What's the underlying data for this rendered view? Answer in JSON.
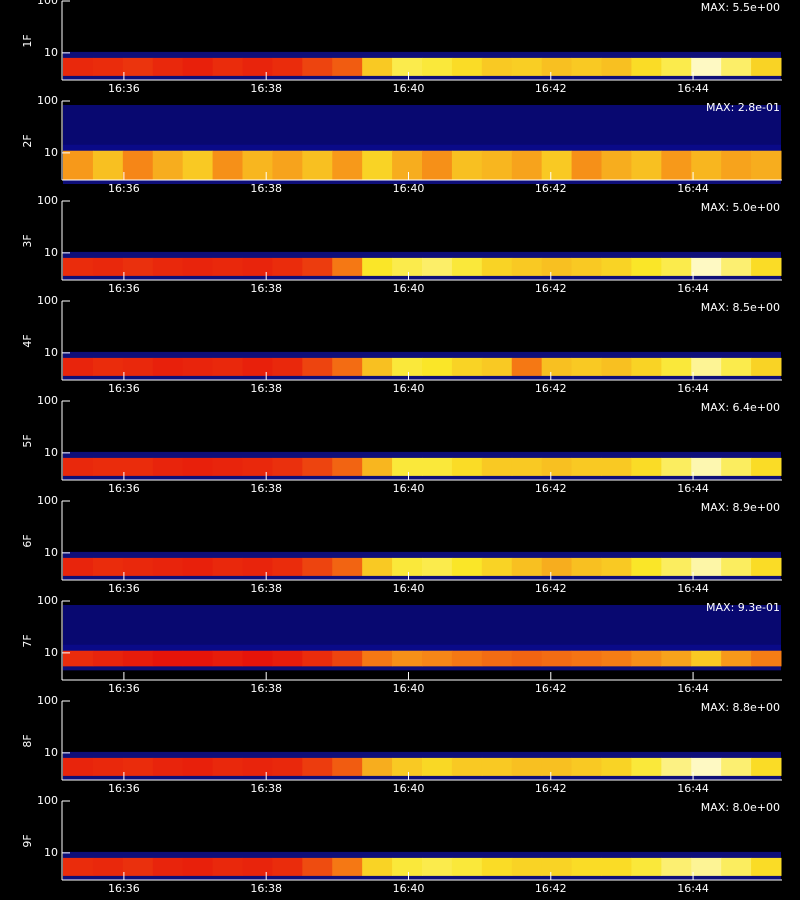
{
  "chart_data": [
    {
      "type": "heatmap",
      "ylabel": "1F",
      "annotation": "MAX: 5.5e+00",
      "ylog": true,
      "ylim": [
        3,
        100
      ],
      "yticks": [
        10,
        100
      ],
      "xlim": [
        35.13,
        45.25
      ],
      "xticks": [
        {
          "value": 36,
          "label": "16:36"
        },
        {
          "value": 38,
          "label": "16:38"
        },
        {
          "value": 40,
          "label": "16:40"
        },
        {
          "value": 42,
          "label": "16:42"
        },
        {
          "value": 44,
          "label": "16:44"
        }
      ],
      "band": [
        3.6,
        8
      ],
      "values": [
        0.35,
        0.36,
        0.38,
        0.35,
        0.33,
        0.36,
        0.34,
        0.36,
        0.42,
        0.48,
        0.72,
        0.82,
        0.8,
        0.76,
        0.72,
        0.73,
        0.7,
        0.72,
        0.7,
        0.76,
        0.82,
        0.95,
        0.85,
        0.74
      ]
    },
    {
      "type": "heatmap",
      "ylabel": "2F",
      "annotation": "MAX: 2.8e-01",
      "ylog": true,
      "ylim": [
        3,
        100
      ],
      "yticks": [
        10,
        100
      ],
      "xlim": [
        35.13,
        45.25
      ],
      "xticks": [
        {
          "value": 36,
          "label": "16:36"
        },
        {
          "value": 38,
          "label": "16:38"
        },
        {
          "value": 40,
          "label": "16:40"
        },
        {
          "value": 42,
          "label": "16:42"
        },
        {
          "value": 44,
          "label": "16:44"
        }
      ],
      "band": [
        3,
        11
      ],
      "values": [
        0.62,
        0.7,
        0.58,
        0.66,
        0.72,
        0.6,
        0.68,
        0.64,
        0.7,
        0.62,
        0.74,
        0.66,
        0.6,
        0.7,
        0.68,
        0.64,
        0.72,
        0.6,
        0.66,
        0.7,
        0.62,
        0.68,
        0.64,
        0.66
      ]
    },
    {
      "type": "heatmap",
      "ylabel": "3F",
      "annotation": "MAX: 5.0e+00",
      "ylog": true,
      "ylim": [
        3,
        100
      ],
      "yticks": [
        10,
        100
      ],
      "xlim": [
        35.13,
        45.25
      ],
      "xticks": [
        {
          "value": 36,
          "label": "16:36"
        },
        {
          "value": 38,
          "label": "16:38"
        },
        {
          "value": 40,
          "label": "16:40"
        },
        {
          "value": 42,
          "label": "16:42"
        },
        {
          "value": 44,
          "label": "16:44"
        }
      ],
      "band": [
        3.6,
        8
      ],
      "values": [
        0.36,
        0.35,
        0.37,
        0.35,
        0.34,
        0.35,
        0.34,
        0.36,
        0.4,
        0.55,
        0.78,
        0.82,
        0.85,
        0.8,
        0.74,
        0.72,
        0.7,
        0.72,
        0.74,
        0.78,
        0.82,
        0.95,
        0.86,
        0.76
      ]
    },
    {
      "type": "heatmap",
      "ylabel": "4F",
      "annotation": "MAX: 8.5e+00",
      "ylog": true,
      "ylim": [
        3,
        100
      ],
      "yticks": [
        10,
        100
      ],
      "xlim": [
        35.13,
        45.25
      ],
      "xticks": [
        {
          "value": 36,
          "label": "16:36"
        },
        {
          "value": 38,
          "label": "16:38"
        },
        {
          "value": 40,
          "label": "16:40"
        },
        {
          "value": 42,
          "label": "16:42"
        },
        {
          "value": 44,
          "label": "16:44"
        }
      ],
      "band": [
        3.6,
        8
      ],
      "values": [
        0.34,
        0.36,
        0.35,
        0.33,
        0.34,
        0.35,
        0.33,
        0.35,
        0.42,
        0.52,
        0.7,
        0.8,
        0.78,
        0.74,
        0.72,
        0.55,
        0.7,
        0.72,
        0.7,
        0.74,
        0.8,
        0.9,
        0.82,
        0.74
      ]
    },
    {
      "type": "heatmap",
      "ylabel": "5F",
      "annotation": "MAX: 6.4e+00",
      "ylog": true,
      "ylim": [
        3,
        100
      ],
      "yticks": [
        10,
        100
      ],
      "xlim": [
        35.13,
        45.25
      ],
      "xticks": [
        {
          "value": 36,
          "label": "16:36"
        },
        {
          "value": 38,
          "label": "16:38"
        },
        {
          "value": 40,
          "label": "16:40"
        },
        {
          "value": 42,
          "label": "16:42"
        },
        {
          "value": 44,
          "label": "16:44"
        }
      ],
      "band": [
        3.6,
        8
      ],
      "values": [
        0.35,
        0.36,
        0.36,
        0.34,
        0.33,
        0.34,
        0.35,
        0.37,
        0.42,
        0.5,
        0.68,
        0.8,
        0.8,
        0.76,
        0.72,
        0.72,
        0.7,
        0.72,
        0.72,
        0.76,
        0.84,
        0.93,
        0.84,
        0.76
      ]
    },
    {
      "type": "heatmap",
      "ylabel": "6F",
      "annotation": "MAX: 8.9e+00",
      "ylog": true,
      "ylim": [
        3,
        100
      ],
      "yticks": [
        10,
        100
      ],
      "xlim": [
        35.13,
        45.25
      ],
      "xticks": [
        {
          "value": 36,
          "label": "16:36"
        },
        {
          "value": 38,
          "label": "16:38"
        },
        {
          "value": 40,
          "label": "16:40"
        },
        {
          "value": 42,
          "label": "16:42"
        },
        {
          "value": 44,
          "label": "16:44"
        }
      ],
      "band": [
        3.6,
        8
      ],
      "values": [
        0.34,
        0.36,
        0.35,
        0.34,
        0.33,
        0.35,
        0.34,
        0.36,
        0.42,
        0.5,
        0.72,
        0.8,
        0.82,
        0.78,
        0.74,
        0.7,
        0.66,
        0.7,
        0.72,
        0.78,
        0.84,
        0.92,
        0.84,
        0.76
      ]
    },
    {
      "type": "heatmap",
      "ylabel": "7F",
      "annotation": "MAX: 9.3e-01",
      "ylog": true,
      "ylim": [
        3,
        100
      ],
      "yticks": [
        10,
        100
      ],
      "xlim": [
        35.13,
        45.25
      ],
      "xticks": [
        {
          "value": 36,
          "label": "16:36"
        },
        {
          "value": 38,
          "label": "16:38"
        },
        {
          "value": 40,
          "label": "16:40"
        },
        {
          "value": 42,
          "label": "16:42"
        },
        {
          "value": 44,
          "label": "16:44"
        }
      ],
      "band": [
        5.5,
        11
      ],
      "values": [
        0.36,
        0.34,
        0.32,
        0.3,
        0.3,
        0.32,
        0.3,
        0.32,
        0.36,
        0.42,
        0.55,
        0.6,
        0.58,
        0.55,
        0.52,
        0.5,
        0.52,
        0.54,
        0.56,
        0.6,
        0.64,
        0.72,
        0.62,
        0.56
      ]
    },
    {
      "type": "heatmap",
      "ylabel": "8F",
      "annotation": "MAX: 8.8e+00",
      "ylog": true,
      "ylim": [
        3,
        100
      ],
      "yticks": [
        10,
        100
      ],
      "xlim": [
        35.13,
        45.25
      ],
      "xticks": [
        {
          "value": 36,
          "label": "16:36"
        },
        {
          "value": 38,
          "label": "16:38"
        },
        {
          "value": 40,
          "label": "16:40"
        },
        {
          "value": 42,
          "label": "16:42"
        },
        {
          "value": 44,
          "label": "16:44"
        }
      ],
      "band": [
        3.6,
        8
      ],
      "values": [
        0.34,
        0.35,
        0.36,
        0.34,
        0.33,
        0.35,
        0.34,
        0.35,
        0.4,
        0.48,
        0.66,
        0.72,
        0.75,
        0.72,
        0.72,
        0.7,
        0.7,
        0.72,
        0.74,
        0.8,
        0.88,
        0.95,
        0.86,
        0.76
      ]
    },
    {
      "type": "heatmap",
      "ylabel": "9F",
      "annotation": "MAX: 8.0e+00",
      "ylog": true,
      "ylim": [
        3,
        100
      ],
      "yticks": [
        10,
        100
      ],
      "xlim": [
        35.13,
        45.25
      ],
      "xticks": [
        {
          "value": 36,
          "label": "16:36"
        },
        {
          "value": 38,
          "label": "16:38"
        },
        {
          "value": 40,
          "label": "16:40"
        },
        {
          "value": 42,
          "label": "16:42"
        },
        {
          "value": 44,
          "label": "16:44"
        }
      ],
      "band": [
        3.6,
        8
      ],
      "values": [
        0.36,
        0.35,
        0.37,
        0.34,
        0.33,
        0.35,
        0.34,
        0.36,
        0.44,
        0.55,
        0.74,
        0.8,
        0.82,
        0.8,
        0.76,
        0.74,
        0.74,
        0.76,
        0.76,
        0.8,
        0.86,
        0.9,
        0.84,
        0.76
      ]
    }
  ]
}
